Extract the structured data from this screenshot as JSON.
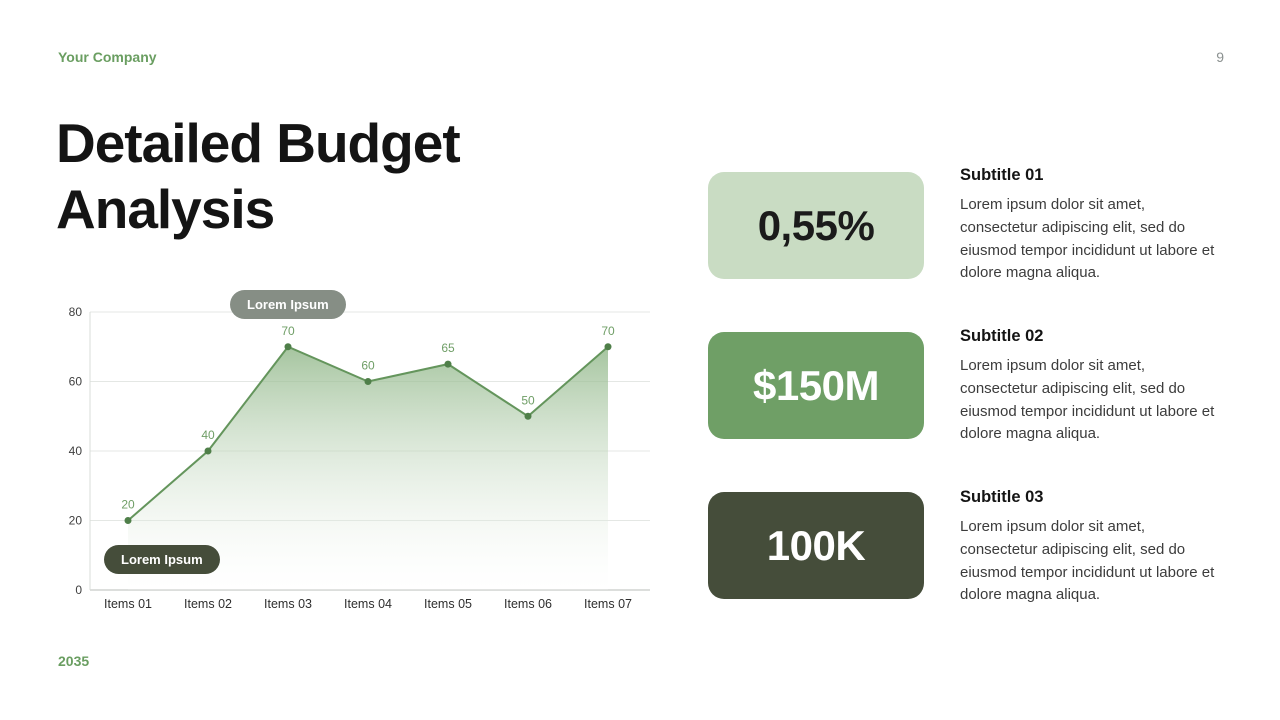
{
  "header": {
    "company": "Your Company",
    "page_number": "9"
  },
  "title": "Detailed Budget Analysis",
  "footer": {
    "year": "2035"
  },
  "colors": {
    "accent_green": "#6a9e61",
    "chart_line": "#64955c",
    "chart_fill_top": "#8fb687",
    "badge_top_bg": "#868e85",
    "badge_bottom_bg": "#454d3a"
  },
  "chart_data": {
    "type": "area",
    "categories": [
      "Items 01",
      "Items 02",
      "Items 03",
      "Items 04",
      "Items 05",
      "Items 06",
      "Items 07"
    ],
    "values": [
      20,
      40,
      70,
      60,
      65,
      50,
      70
    ],
    "title": "",
    "xlabel": "",
    "ylabel": "",
    "ylim": [
      0,
      80
    ],
    "yticks": [
      0,
      20,
      40,
      60,
      80
    ],
    "grid": "horizontal",
    "legend": "none",
    "badges": [
      {
        "label": "Lorem Ipsum",
        "position": "top",
        "bg": "#868e85"
      },
      {
        "label": "Lorem Ipsum",
        "position": "bottom",
        "bg": "#454d3a"
      }
    ]
  },
  "stats": [
    {
      "value": "0,55%",
      "subtitle": "Subtitle 01",
      "text": "Lorem ipsum dolor sit amet, consectetur adipiscing elit, sed do eiusmod tempor incididunt ut labore et dolore magna aliqua.",
      "card_bg": "#c9dcc3"
    },
    {
      "value": "$150M",
      "subtitle": "Subtitle 02",
      "text": "Lorem ipsum dolor sit amet, consectetur adipiscing elit, sed do eiusmod tempor incididunt ut labore et dolore magna aliqua.",
      "card_bg": "#6f9f66"
    },
    {
      "value": "100K",
      "subtitle": "Subtitle 03",
      "text": "Lorem ipsum dolor sit amet, consectetur adipiscing elit, sed do eiusmod tempor incididunt ut labore et dolore magna aliqua.",
      "card_bg": "#454d3a"
    }
  ]
}
